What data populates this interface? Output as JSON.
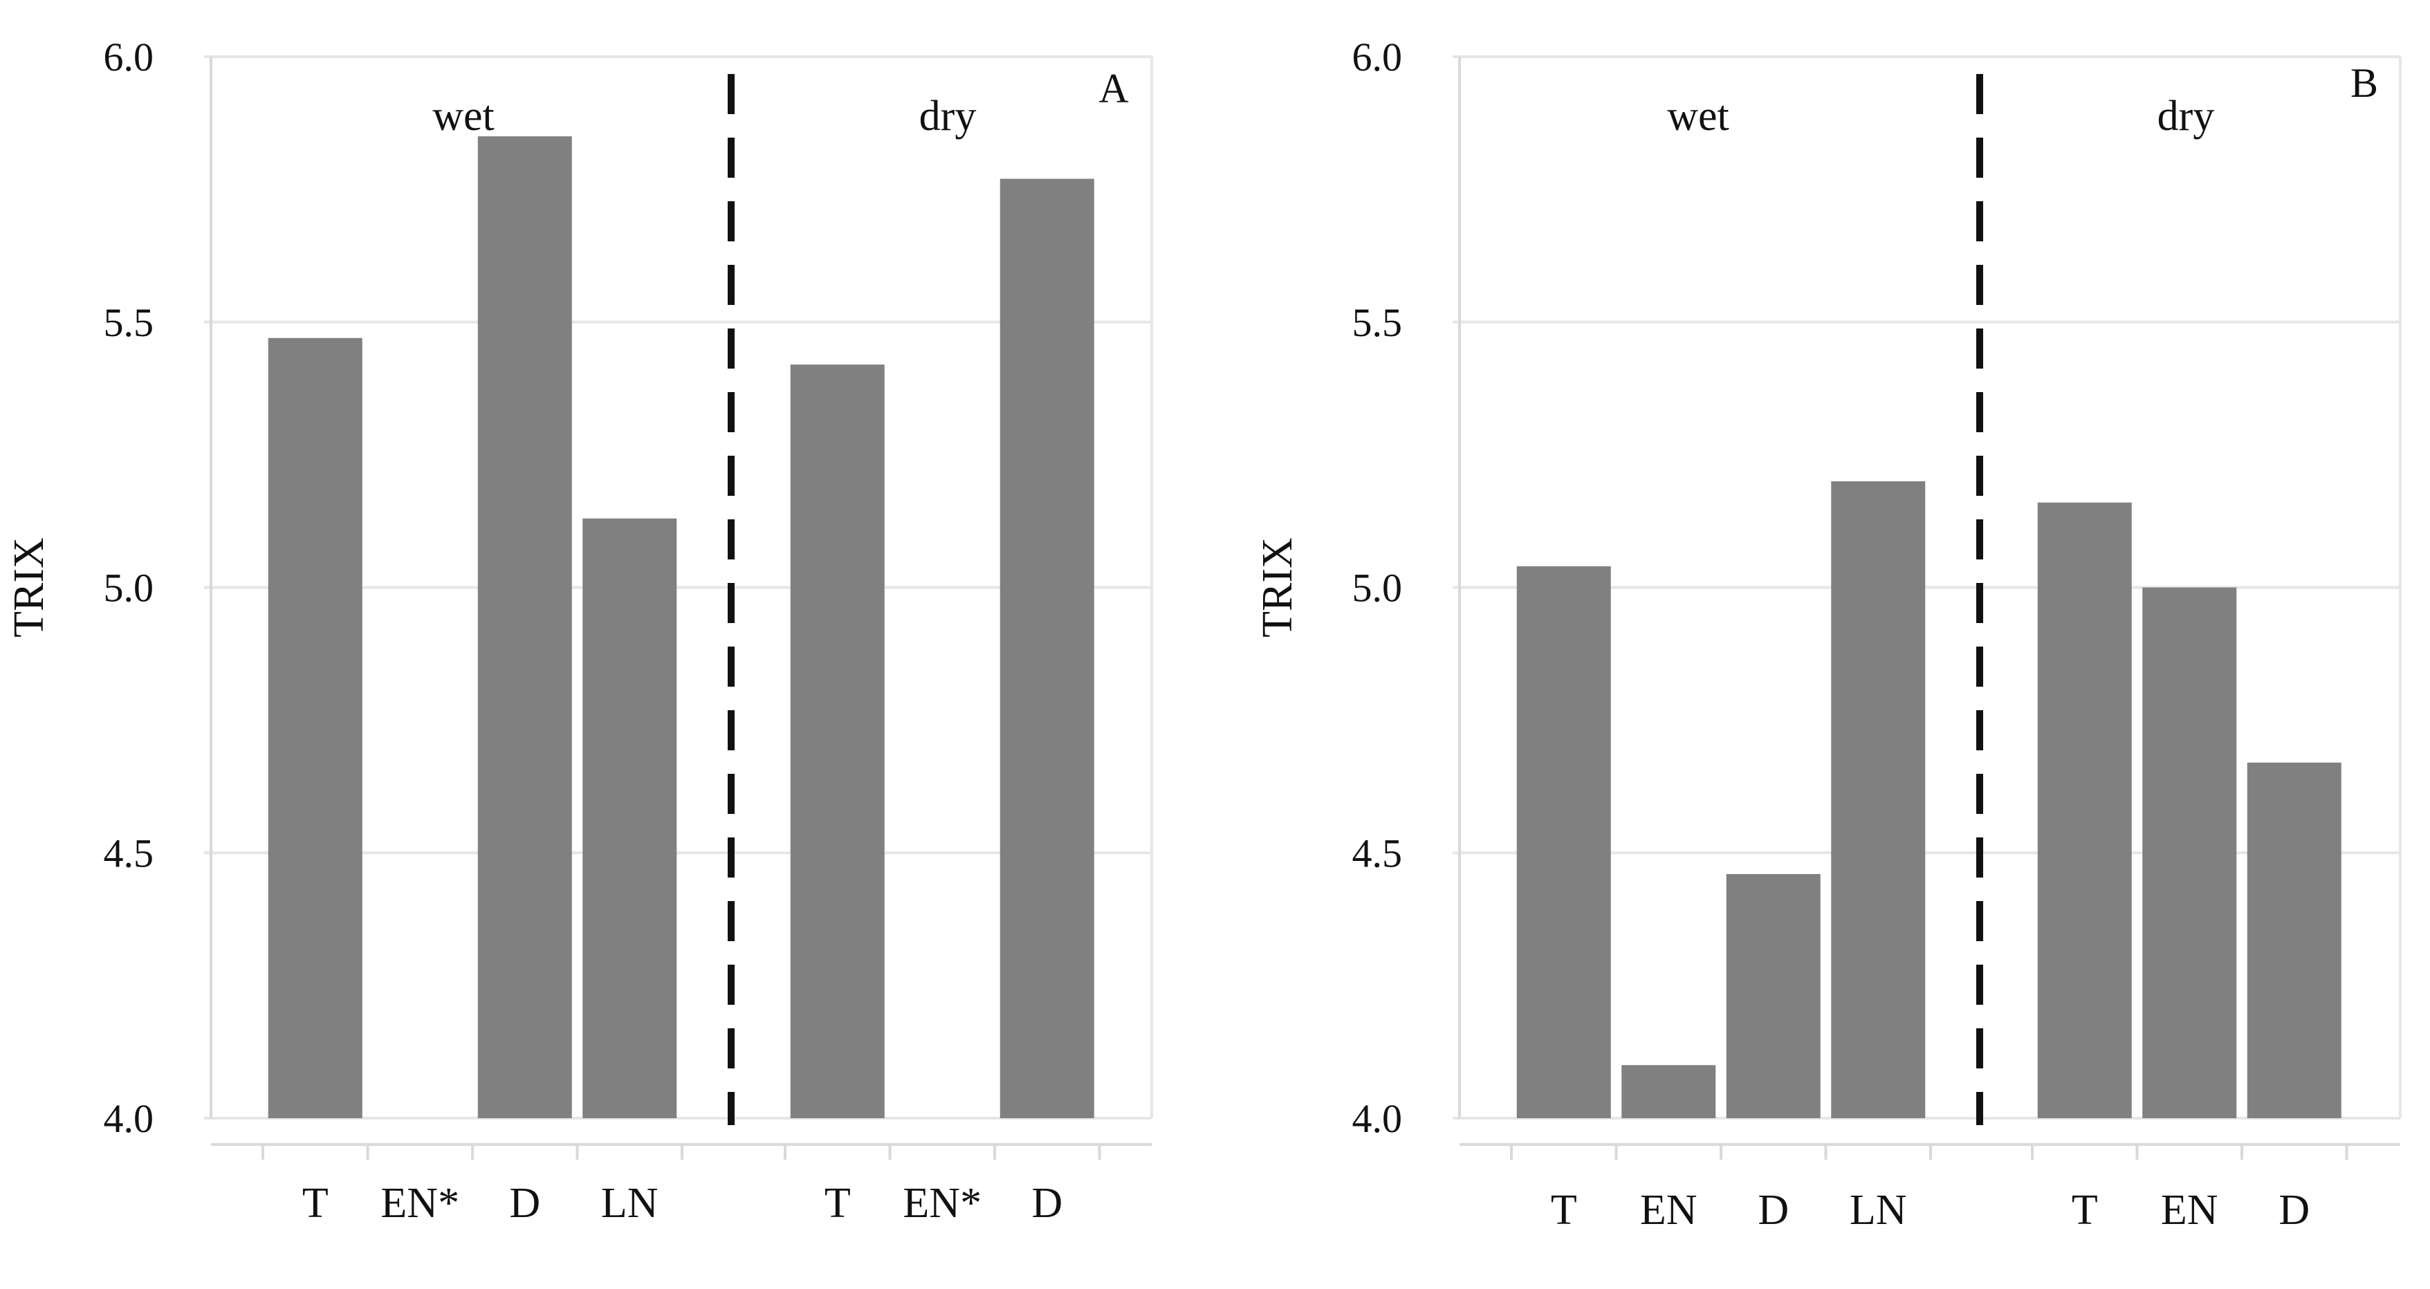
{
  "colors": {
    "bar": "#808080",
    "grid": "#e6e6e6",
    "axis": "#d9d9d9",
    "divider": "#111111"
  },
  "chart_data": [
    {
      "type": "bar",
      "panel_label": "A",
      "ylabel": "TRIX",
      "ylim": [
        4.0,
        6.0
      ],
      "yticks": [
        "4.0",
        "4.5",
        "5.0",
        "5.5",
        "6.0"
      ],
      "groups": [
        {
          "season": "wet",
          "categories": [
            "T",
            "EN*",
            "D",
            "LN"
          ],
          "values": [
            5.47,
            null,
            5.85,
            5.13
          ]
        },
        {
          "season": "dry",
          "categories": [
            "T",
            "EN*",
            "D"
          ],
          "values": [
            5.42,
            null,
            5.77
          ]
        }
      ],
      "grid": true,
      "divider": "dashed vertical line between wet and dry"
    },
    {
      "type": "bar",
      "panel_label": "B",
      "ylabel": "TRIX",
      "ylim": [
        4.0,
        6.0
      ],
      "yticks": [
        "4.0",
        "4.5",
        "5.0",
        "5.5",
        "6.0"
      ],
      "groups": [
        {
          "season": "wet",
          "categories": [
            "T",
            "EN",
            "D",
            "LN"
          ],
          "values": [
            5.04,
            4.1,
            4.46,
            5.2
          ]
        },
        {
          "season": "dry",
          "categories": [
            "T",
            "EN",
            "D"
          ],
          "values": [
            5.16,
            5.0,
            4.67
          ]
        }
      ],
      "grid": true,
      "divider": "dashed vertical line between wet and dry"
    }
  ]
}
